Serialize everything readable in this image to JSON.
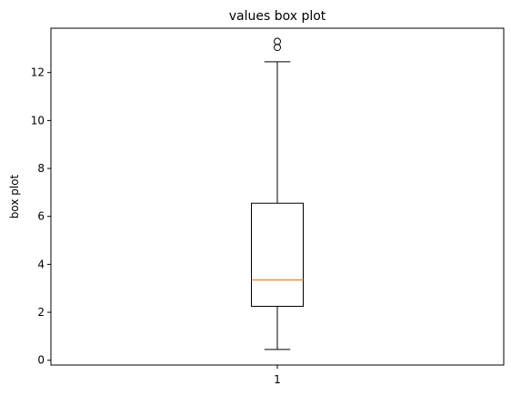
{
  "chart_data": {
    "type": "boxplot",
    "title": "values box plot",
    "xlabel": "",
    "ylabel": "box plot",
    "categories": [
      "1"
    ],
    "series": [
      {
        "whisker_low": 0.45,
        "q1": 2.25,
        "median": 3.35,
        "q3": 6.55,
        "whisker_high": 12.45,
        "outliers": [
          13.05,
          13.3
        ]
      }
    ],
    "ylim": [
      -0.2,
      13.85
    ],
    "yticks": [
      0,
      2,
      4,
      6,
      8,
      10,
      12
    ],
    "grid": false,
    "colors": {
      "box": "#000000",
      "median": "#ff7f0e",
      "whisker": "#000000",
      "flier": "#000000"
    }
  }
}
